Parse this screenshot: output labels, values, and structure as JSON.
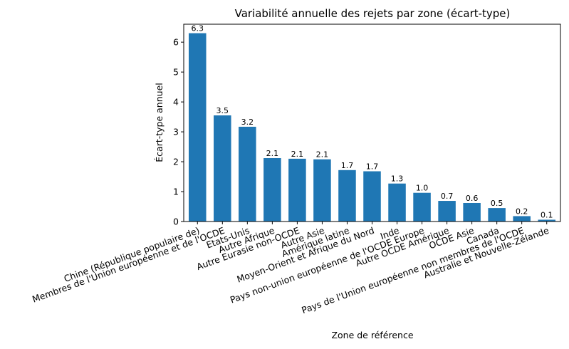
{
  "chart_data": {
    "type": "bar",
    "title": "Variabilité annuelle des rejets par zone (écart-type)",
    "xlabel": "Zone de référence",
    "ylabel": "Écart-type annuel",
    "ylim": [
      0,
      6.6
    ],
    "yticks": [
      0,
      1,
      2,
      3,
      4,
      5,
      6
    ],
    "grid": false,
    "bar_color": "#1f77b4",
    "categories": [
      "Chine (République populaire de)",
      "Membres de l'Union européenne et de l'OCDE",
      "Etats-Unis",
      "Autre Afrique",
      "Autre Eurasie non-OCDE",
      "Autre Asie",
      "Amérique latine",
      "Moyen-Orient et Afrique du Nord",
      "Inde",
      "Pays non-union européenne de l'OCDE Europe",
      "Autre OCDE Amérique",
      "OCDE Asie",
      "Canada",
      "Pays de l'Union européenne non membres de l'OCDE",
      "Australie et Nouvelle-Zélande"
    ],
    "values": [
      6.3,
      3.55,
      3.17,
      2.12,
      2.1,
      2.08,
      1.72,
      1.68,
      1.27,
      0.96,
      0.69,
      0.62,
      0.45,
      0.18,
      0.06
    ],
    "data_labels": [
      "6.3",
      "3.5",
      "3.2",
      "2.1",
      "2.1",
      "2.1",
      "1.7",
      "1.7",
      "1.3",
      "1.0",
      "0.7",
      "0.6",
      "0.5",
      "0.2",
      "0.1"
    ]
  }
}
